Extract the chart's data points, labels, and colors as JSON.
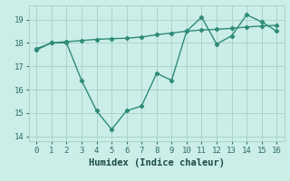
{
  "line1_x": [
    0,
    1,
    2,
    3,
    4,
    5,
    6,
    7,
    8,
    9,
    10,
    11,
    12,
    13,
    14,
    15,
    16
  ],
  "line1_y": [
    17.7,
    18.0,
    18.0,
    16.4,
    15.1,
    14.3,
    15.1,
    15.3,
    16.7,
    16.4,
    18.5,
    19.1,
    17.95,
    18.3,
    19.2,
    18.9,
    18.5
  ],
  "line2_x": [
    0,
    1,
    2,
    3,
    4,
    5,
    6,
    7,
    8,
    9,
    10,
    11,
    12,
    13,
    14,
    15,
    16
  ],
  "line2_y": [
    17.75,
    18.0,
    18.05,
    18.1,
    18.15,
    18.18,
    18.2,
    18.25,
    18.35,
    18.42,
    18.5,
    18.55,
    18.58,
    18.62,
    18.68,
    18.72,
    18.75
  ],
  "line_color": "#2e8b7a",
  "bg_color": "#cceee8",
  "grid_color": "#aad4cc",
  "xlabel": "Humidex (Indice chaleur)",
  "xlim": [
    -0.5,
    16.5
  ],
  "ylim": [
    13.8,
    19.6
  ],
  "yticks": [
    14,
    15,
    16,
    17,
    18,
    19
  ],
  "xticks": [
    0,
    1,
    2,
    3,
    4,
    5,
    6,
    7,
    8,
    9,
    10,
    11,
    12,
    13,
    14,
    15,
    16
  ],
  "xlabel_fontsize": 7.5,
  "tick_fontsize": 6.5
}
